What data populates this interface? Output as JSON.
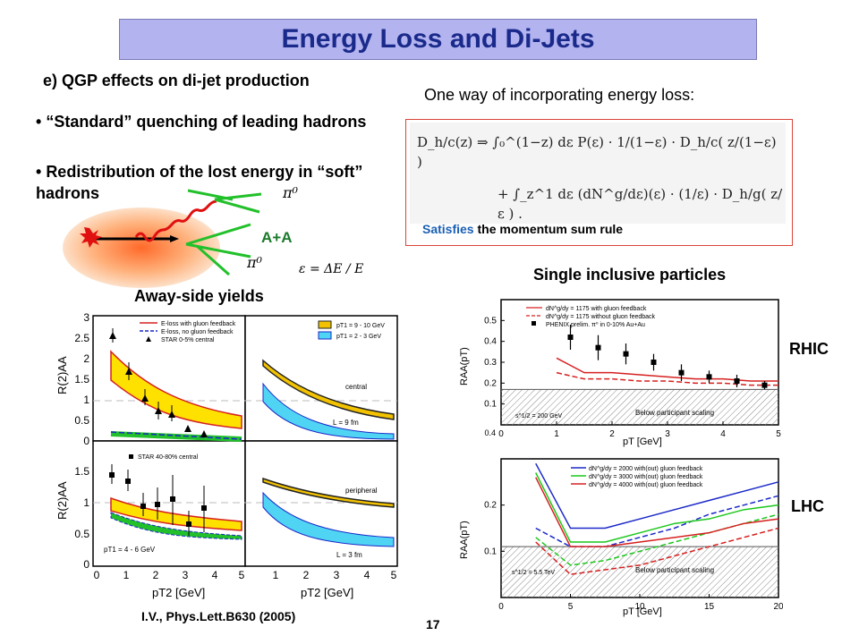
{
  "title": "Energy Loss and Di-Jets",
  "section_heading": "e) QGP effects on di-jet production",
  "bullets": [
    "“Standard” quenching of leading hadrons",
    "Redistribution of the lost energy in “soft” hadrons"
  ],
  "diagram": {
    "aa_label": "A+A",
    "pi_upper": "π⁰",
    "pi_lower": "π⁰",
    "epsilon_def": "ε = ΔE / E"
  },
  "energy_loss_heading": "One way of incorporating energy loss:",
  "formula": {
    "line1": "D_h/c(z) ⇒ ∫₀^(1−z) dε P(ε) · 1/(1−ε) · D_h/c( z/(1−ε) )",
    "line2": "+ ∫_z^1 dε (dN^g/dε)(ε) · (1/ε) · D_h/g( z/ε ) ."
  },
  "sum_rule": {
    "prefix": "Satisfies",
    "suffix": "the momentum sum rule",
    "prefix_color": "#1a5fb4"
  },
  "away_side_heading": "Away-side yields",
  "single_inclusive_heading": "Single inclusive particles",
  "rhic_label": "RHIC",
  "lhc_label": "LHC",
  "citation": "I.V., Phys.Lett.B630 (2005)",
  "page_number": "17",
  "left_figure": {
    "y_label": "R(2)AA",
    "x_label": "pT2 [GeV]",
    "top_left_legend": [
      "E-loss with gluon feedback",
      "E-loss, no gluon feedback",
      "STAR 0-5% central"
    ],
    "top_right_legend": [
      "pT1 = 9 - 10 GeV",
      "pT1 = 2 - 3 GeV"
    ],
    "central_label": "central",
    "l9": "L = 9 fm",
    "bottom_left_legend": "STAR 40-80% central",
    "pt1_label": "pT1 = 4 - 6 GeV",
    "peripheral_label": "peripheral",
    "l3": "L = 3 fm",
    "y_ticks_top": [
      "3",
      "2.5",
      "2",
      "1.5",
      "1",
      "0.5",
      "0"
    ],
    "y_ticks_bottom": [
      "1.5",
      "1",
      "0.5",
      "0"
    ],
    "x_ticks_left": [
      "0",
      "1",
      "2",
      "3",
      "4",
      "5"
    ],
    "x_ticks_right": [
      "1",
      "2",
      "3",
      "4",
      "5"
    ]
  },
  "chart_data": [
    {
      "type": "line",
      "title": "RHIC",
      "xlabel": "pT [GeV]",
      "ylabel": "RAA(pT)",
      "xlim": [
        0,
        5
      ],
      "ylim": [
        0,
        0.6
      ],
      "x_ticks": [
        "0",
        "1",
        "2",
        "3",
        "4",
        "5"
      ],
      "y_ticks": [
        "0.1",
        "0.2",
        "0.3",
        "0.4",
        "0.5"
      ],
      "y_bottom_tick": "0.4",
      "legend": [
        "dN^g/dy = 1175 with gluon feedback",
        "dN^g/dy = 1175 without gluon feedback",
        "PHENIX prelim. π⁰ in 0-10% Au+Au"
      ],
      "annotations": [
        "s^1/2 = 200 GeV",
        "Below participant scaling"
      ],
      "colors": {
        "model": "#d62020",
        "data": "#000000",
        "hatch": "#888888"
      },
      "series": [
        {
          "name": "dN^g/dy = 1175 with gluon feedback",
          "style": "solid",
          "x": [
            1.0,
            1.5,
            2.0,
            2.5,
            3.0,
            3.5,
            4.0,
            4.5,
            5.0
          ],
          "y": [
            0.32,
            0.25,
            0.25,
            0.24,
            0.23,
            0.22,
            0.22,
            0.21,
            0.21
          ]
        },
        {
          "name": "dN^g/dy = 1175 without gluon feedback",
          "style": "dashed",
          "x": [
            1.0,
            1.5,
            2.0,
            2.5,
            3.0,
            3.5,
            4.0,
            4.5,
            5.0
          ],
          "y": [
            0.25,
            0.22,
            0.22,
            0.21,
            0.21,
            0.2,
            0.2,
            0.19,
            0.19
          ]
        },
        {
          "name": "PHENIX prelim. π⁰ in 0-10% Au+Au",
          "style": "points",
          "x": [
            1.25,
            1.75,
            2.25,
            2.75,
            3.25,
            3.75,
            4.25,
            4.75
          ],
          "y": [
            0.42,
            0.37,
            0.34,
            0.3,
            0.25,
            0.23,
            0.21,
            0.19
          ],
          "err": [
            0.06,
            0.06,
            0.05,
            0.04,
            0.04,
            0.03,
            0.03,
            0.02
          ]
        }
      ],
      "below_participant_scaling": 0.17
    },
    {
      "type": "line",
      "title": "LHC",
      "xlabel": "pT [GeV]",
      "ylabel": "RAA(pT)",
      "xlim": [
        0,
        20
      ],
      "ylim": [
        0,
        0.3
      ],
      "x_ticks": [
        "0",
        "5",
        "10",
        "15",
        "20"
      ],
      "y_ticks": [
        "0.1",
        "0.2"
      ],
      "legend": [
        "dN^g/dy = 2000 with(out) gluon feedback",
        "dN^g/dy = 3000 with(out) gluon feedback",
        "dN^g/dy = 4000 with(out) gluon feedback"
      ],
      "annotations": [
        "s^1/2 = 5.5 TeV",
        "Below participant scaling"
      ],
      "colors": {
        "2000": "#1a28c8",
        "3000": "#1cc81c",
        "4000": "#d62020",
        "hatch": "#888888"
      },
      "series": [
        {
          "name": "dN^g/dy = 2000 with(out) gluon feedback",
          "x": [
            2.5,
            5,
            7.5,
            10,
            12.5,
            15,
            17.5,
            20
          ],
          "y": [
            0.29,
            0.15,
            0.15,
            0.17,
            0.19,
            0.21,
            0.23,
            0.25
          ],
          "y_dashed": [
            0.15,
            0.11,
            0.11,
            0.13,
            0.15,
            0.18,
            0.2,
            0.22
          ]
        },
        {
          "name": "dN^g/dy = 3000 with(out) gluon feedback",
          "x": [
            2.5,
            5,
            7.5,
            10,
            12.5,
            15,
            17.5,
            20
          ],
          "y": [
            0.27,
            0.12,
            0.12,
            0.14,
            0.16,
            0.17,
            0.19,
            0.2
          ],
          "y_dashed": [
            0.13,
            0.07,
            0.08,
            0.1,
            0.12,
            0.14,
            0.16,
            0.18
          ]
        },
        {
          "name": "dN^g/dy = 4000 with(out) gluon feedback",
          "x": [
            2.5,
            5,
            7.5,
            10,
            12.5,
            15,
            17.5,
            20
          ],
          "y": [
            0.26,
            0.11,
            0.11,
            0.12,
            0.13,
            0.14,
            0.16,
            0.17
          ],
          "y_dashed": [
            0.12,
            0.05,
            0.06,
            0.07,
            0.09,
            0.11,
            0.13,
            0.15
          ]
        }
      ],
      "below_participant_scaling": 0.11
    }
  ]
}
